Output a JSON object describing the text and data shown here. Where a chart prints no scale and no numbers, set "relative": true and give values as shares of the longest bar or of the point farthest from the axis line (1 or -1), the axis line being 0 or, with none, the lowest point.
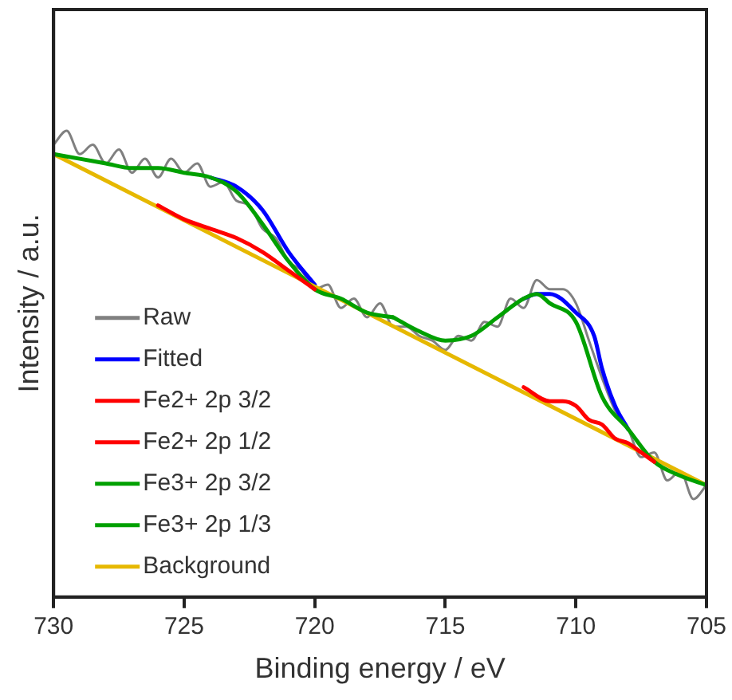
{
  "chart_data": {
    "type": "line",
    "xlabel": "Binding energy / eV",
    "ylabel": "Intensity / a.u.",
    "relative": true,
    "xlim": [
      730,
      705
    ],
    "xticks": [
      730,
      725,
      720,
      715,
      710,
      705
    ],
    "tick_labels": "x",
    "grid": false,
    "legend": "bottom left",
    "marker": "none",
    "line_style": "solid",
    "series": [
      {
        "name": "Raw",
        "color": "#808080",
        "x": [
          730,
          729.5,
          729,
          728.5,
          728,
          727.5,
          727,
          726.5,
          726,
          725.5,
          725,
          724.5,
          724,
          723.5,
          723,
          722.5,
          722,
          721.5,
          721,
          720.5,
          720,
          719.5,
          719,
          718.5,
          718,
          717.5,
          717,
          716.5,
          716,
          715.5,
          715,
          714.5,
          714,
          713.5,
          713,
          712.5,
          712,
          711.5,
          711,
          710.5,
          710,
          709.5,
          709,
          708.5,
          708,
          707.5,
          707,
          706.5,
          706,
          705.5,
          705
        ],
        "values": [
          0.97,
          1.0,
          0.95,
          0.97,
          0.93,
          0.96,
          0.91,
          0.94,
          0.9,
          0.94,
          0.91,
          0.93,
          0.88,
          0.89,
          0.85,
          0.84,
          0.79,
          0.77,
          0.72,
          0.7,
          0.66,
          0.67,
          0.62,
          0.64,
          0.6,
          0.63,
          0.58,
          0.58,
          0.56,
          0.55,
          0.53,
          0.56,
          0.55,
          0.59,
          0.58,
          0.64,
          0.62,
          0.68,
          0.66,
          0.66,
          0.63,
          0.55,
          0.47,
          0.4,
          0.36,
          0.3,
          0.31,
          0.25,
          0.27,
          0.21,
          0.24
        ]
      },
      {
        "name": "Fitted",
        "color": "#0000ff",
        "x": [
          724,
          723,
          722,
          721,
          720,
          719,
          718,
          717,
          716,
          715,
          714,
          713,
          712,
          711.5,
          711,
          710,
          709.3,
          709,
          708.5,
          708
        ],
        "values": [
          0.9,
          0.88,
          0.83,
          0.74,
          0.67,
          null,
          null,
          null,
          null,
          null,
          null,
          null,
          0.64,
          0.65,
          0.65,
          0.61,
          0.56,
          0.49,
          0.41,
          0.36
        ]
      },
      {
        "name": "Fe2+ 2p 3/2",
        "color": "#ff0000",
        "x": [
          712,
          711,
          710.5,
          710,
          709.5,
          709,
          708.5,
          708,
          707.5,
          707
        ],
        "values": [
          0.45,
          0.42,
          0.42,
          0.41,
          0.38,
          0.37,
          0.34,
          0.33,
          0.31,
          0.29
        ]
      },
      {
        "name": "Fe2+ 2p 1/2",
        "color": "#ff0000",
        "x": [
          726,
          725,
          724,
          723,
          722,
          721,
          720.5,
          720
        ],
        "values": [
          0.84,
          0.81,
          0.79,
          0.77,
          0.74,
          0.7,
          0.68,
          0.66
        ]
      },
      {
        "name": "Fe3+ 2p 3/2",
        "color": "#00a000",
        "x": [
          717,
          716,
          715,
          714,
          713,
          712,
          711.5,
          711,
          710,
          709,
          708,
          707,
          706,
          705
        ],
        "values": [
          0.6,
          0.57,
          0.55,
          0.56,
          0.6,
          0.64,
          0.65,
          0.63,
          0.59,
          0.43,
          0.36,
          0.29,
          0.26,
          0.24
        ]
      },
      {
        "name": "Fe3+ 2p 1/3",
        "color": "#00a000",
        "x": [
          730,
          729,
          728,
          727,
          726,
          725,
          724,
          723,
          722,
          721,
          720,
          719,
          718,
          717
        ],
        "values": [
          0.95,
          0.94,
          0.93,
          0.92,
          0.92,
          0.91,
          0.9,
          0.87,
          0.8,
          0.72,
          0.66,
          0.64,
          0.61,
          0.6
        ]
      },
      {
        "name": "Background",
        "color": "#e6b800",
        "x": [
          730,
          705
        ],
        "values": [
          0.95,
          0.24
        ]
      }
    ]
  }
}
